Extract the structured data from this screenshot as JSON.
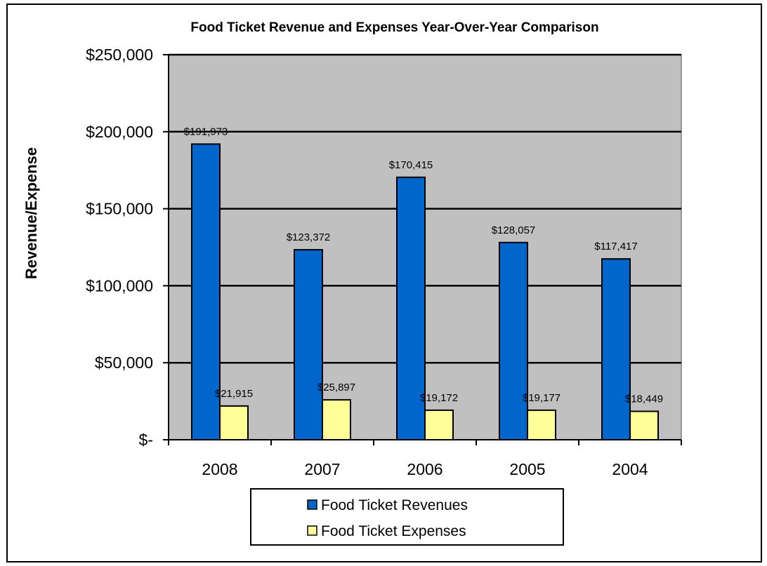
{
  "chart_data": {
    "type": "bar",
    "title": "Food Ticket Revenue and Expenses Year-Over-Year Comparison",
    "ylabel": "Revenue/Expense",
    "xlabel": "",
    "categories": [
      "2008",
      "2007",
      "2006",
      "2005",
      "2004"
    ],
    "ylim": [
      0,
      250000
    ],
    "yticks": [
      0,
      50000,
      100000,
      150000,
      200000,
      250000
    ],
    "ytick_labels": [
      "$-",
      "$50,000",
      "$100,000",
      "$150,000",
      "$200,000",
      "$250,000"
    ],
    "grid": true,
    "legend_position": "bottom",
    "plot_background": "#c0c0c0",
    "series": [
      {
        "name": "Food Ticket Revenues",
        "color": "#0066cc",
        "values": [
          191973,
          123372,
          170415,
          128057,
          117417
        ],
        "labels": [
          "$191,973",
          "$123,372",
          "$170,415",
          "$128,057",
          "$117,417"
        ]
      },
      {
        "name": "Food Ticket Expenses",
        "color": "#ffff99",
        "values": [
          21915,
          25897,
          19172,
          19177,
          18449
        ],
        "labels": [
          "$21,915",
          "$25,897",
          "$19,172",
          "$19,177",
          "$18,449"
        ]
      }
    ]
  }
}
